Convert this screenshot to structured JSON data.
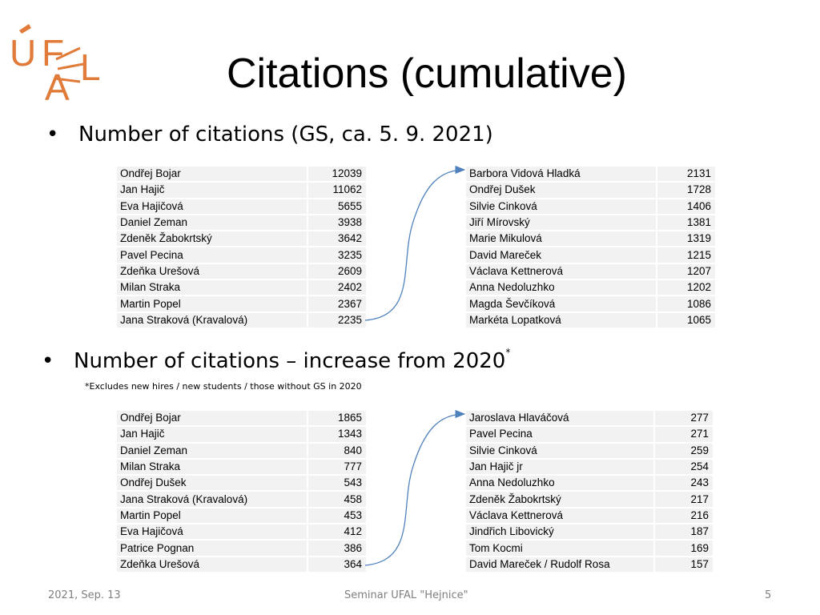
{
  "logo": {
    "text": "ÚFAL",
    "color": "#e07b39"
  },
  "slide": {
    "title": "Citations (cumulative)",
    "bullet1": "Number of citations (GS, ca. 5. 9. 2021)",
    "bullet2": "Number of citations – increase from 2020",
    "bullet2_mark": "*",
    "note": "*Excludes new hires / new students / those without GS in 2020"
  },
  "cumulative": {
    "left": [
      {
        "name": "Ondřej Bojar",
        "value": "12039"
      },
      {
        "name": "Jan Hajič",
        "value": "11062"
      },
      {
        "name": "Eva Hajičová",
        "value": "5655"
      },
      {
        "name": "Daniel Zeman",
        "value": "3938"
      },
      {
        "name": "Zdeněk Žabokrtský",
        "value": "3642"
      },
      {
        "name": "Pavel Pecina",
        "value": "3235"
      },
      {
        "name": "Zdeňka Urešová",
        "value": "2609"
      },
      {
        "name": "Milan Straka",
        "value": "2402"
      },
      {
        "name": "Martin Popel",
        "value": "2367"
      },
      {
        "name": "Jana Straková (Kravalová)",
        "value": "2235"
      }
    ],
    "right": [
      {
        "name": "Barbora Vidová Hladká",
        "value": "2131"
      },
      {
        "name": "Ondřej Dušek",
        "value": "1728"
      },
      {
        "name": "Silvie Cinková",
        "value": "1406"
      },
      {
        "name": "Jiří Mírovský",
        "value": "1381"
      },
      {
        "name": "Marie Mikulová",
        "value": "1319"
      },
      {
        "name": "David Mareček",
        "value": "1215"
      },
      {
        "name": "Václava Kettnerová",
        "value": "1207"
      },
      {
        "name": "Anna Nedoluzhko",
        "value": "1202"
      },
      {
        "name": "Magda Ševčíková",
        "value": "1086"
      },
      {
        "name": "Markéta Lopatková",
        "value": "1065"
      }
    ]
  },
  "increase": {
    "left": [
      {
        "name": "Ondřej Bojar",
        "value": "1865"
      },
      {
        "name": "Jan Hajič",
        "value": "1343"
      },
      {
        "name": "Daniel Zeman",
        "value": "840"
      },
      {
        "name": "Milan Straka",
        "value": "777"
      },
      {
        "name": "Ondřej Dušek",
        "value": "543"
      },
      {
        "name": "Jana Straková (Kravalová)",
        "value": "458"
      },
      {
        "name": "Martin Popel",
        "value": "453"
      },
      {
        "name": "Eva Hajičová",
        "value": "412"
      },
      {
        "name": "Patrice Pognan",
        "value": "386"
      },
      {
        "name": "Zdeňka Urešová",
        "value": "364"
      }
    ],
    "right": [
      {
        "name": "Jaroslava Hlaváčová",
        "value": "277"
      },
      {
        "name": "Pavel Pecina",
        "value": "271"
      },
      {
        "name": "Silvie Cinková",
        "value": "259"
      },
      {
        "name": "Jan Hajič jr",
        "value": "254"
      },
      {
        "name": "Anna Nedoluzhko",
        "value": "243"
      },
      {
        "name": "Zdeněk Žabokrtský",
        "value": "217"
      },
      {
        "name": "Václava Kettnerová",
        "value": "216"
      },
      {
        "name": "Jindřich Libovický",
        "value": "187"
      },
      {
        "name": "Tom Kocmi",
        "value": "169"
      },
      {
        "name": "David Mareček / Rudolf Rosa",
        "value": "157"
      }
    ]
  },
  "footer": {
    "date": "2021, Sep. 13",
    "event": "Seminar UFAL \"Hejnice\"",
    "page": "5"
  },
  "colors": {
    "arrow": "#4f81bd",
    "cell": "#f2f2f2",
    "footer": "#7f7f7f"
  }
}
